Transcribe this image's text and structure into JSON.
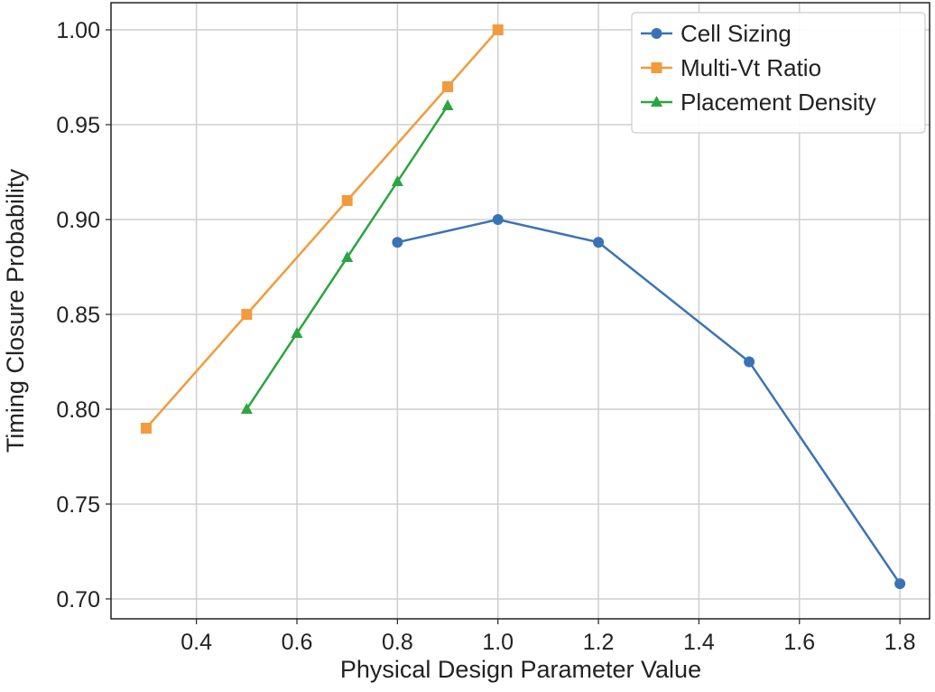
{
  "chart_data": {
    "type": "line",
    "title": "",
    "xlabel": "Physical Design Parameter Value",
    "ylabel": "Timing Closure Probability",
    "xlim": [
      0.23,
      1.859
    ],
    "ylim": [
      0.6895,
      1.0143
    ],
    "xticks": [
      0.4,
      0.6,
      0.8,
      1.0,
      1.2,
      1.4,
      1.6,
      1.8
    ],
    "xtick_labels": [
      "0.4",
      "0.6",
      "0.8",
      "1.0",
      "1.2",
      "1.4",
      "1.6",
      "1.8"
    ],
    "yticks": [
      0.7,
      0.75,
      0.8,
      0.85,
      0.9,
      0.95,
      1.0
    ],
    "ytick_labels": [
      "0.70",
      "0.75",
      "0.80",
      "0.85",
      "0.90",
      "0.95",
      "1.00"
    ],
    "grid": true,
    "legend_position": "top-right",
    "series": [
      {
        "name": "Cell Sizing",
        "color": "#3a73b5",
        "marker": "circle",
        "x": [
          0.8,
          1.0,
          1.2,
          1.5,
          1.8
        ],
        "y": [
          0.888,
          0.9,
          0.888,
          0.825,
          0.708
        ]
      },
      {
        "name": "Multi-Vt Ratio",
        "color": "#f39a3c",
        "marker": "square",
        "x": [
          0.3,
          0.5,
          0.7,
          0.9,
          1.0
        ],
        "y": [
          0.79,
          0.85,
          0.91,
          0.97,
          1.0
        ]
      },
      {
        "name": "Placement Density",
        "color": "#2ca540",
        "marker": "triangle",
        "x": [
          0.5,
          0.6,
          0.7,
          0.8,
          0.9
        ],
        "y": [
          0.8,
          0.84,
          0.88,
          0.92,
          0.96
        ]
      }
    ]
  }
}
